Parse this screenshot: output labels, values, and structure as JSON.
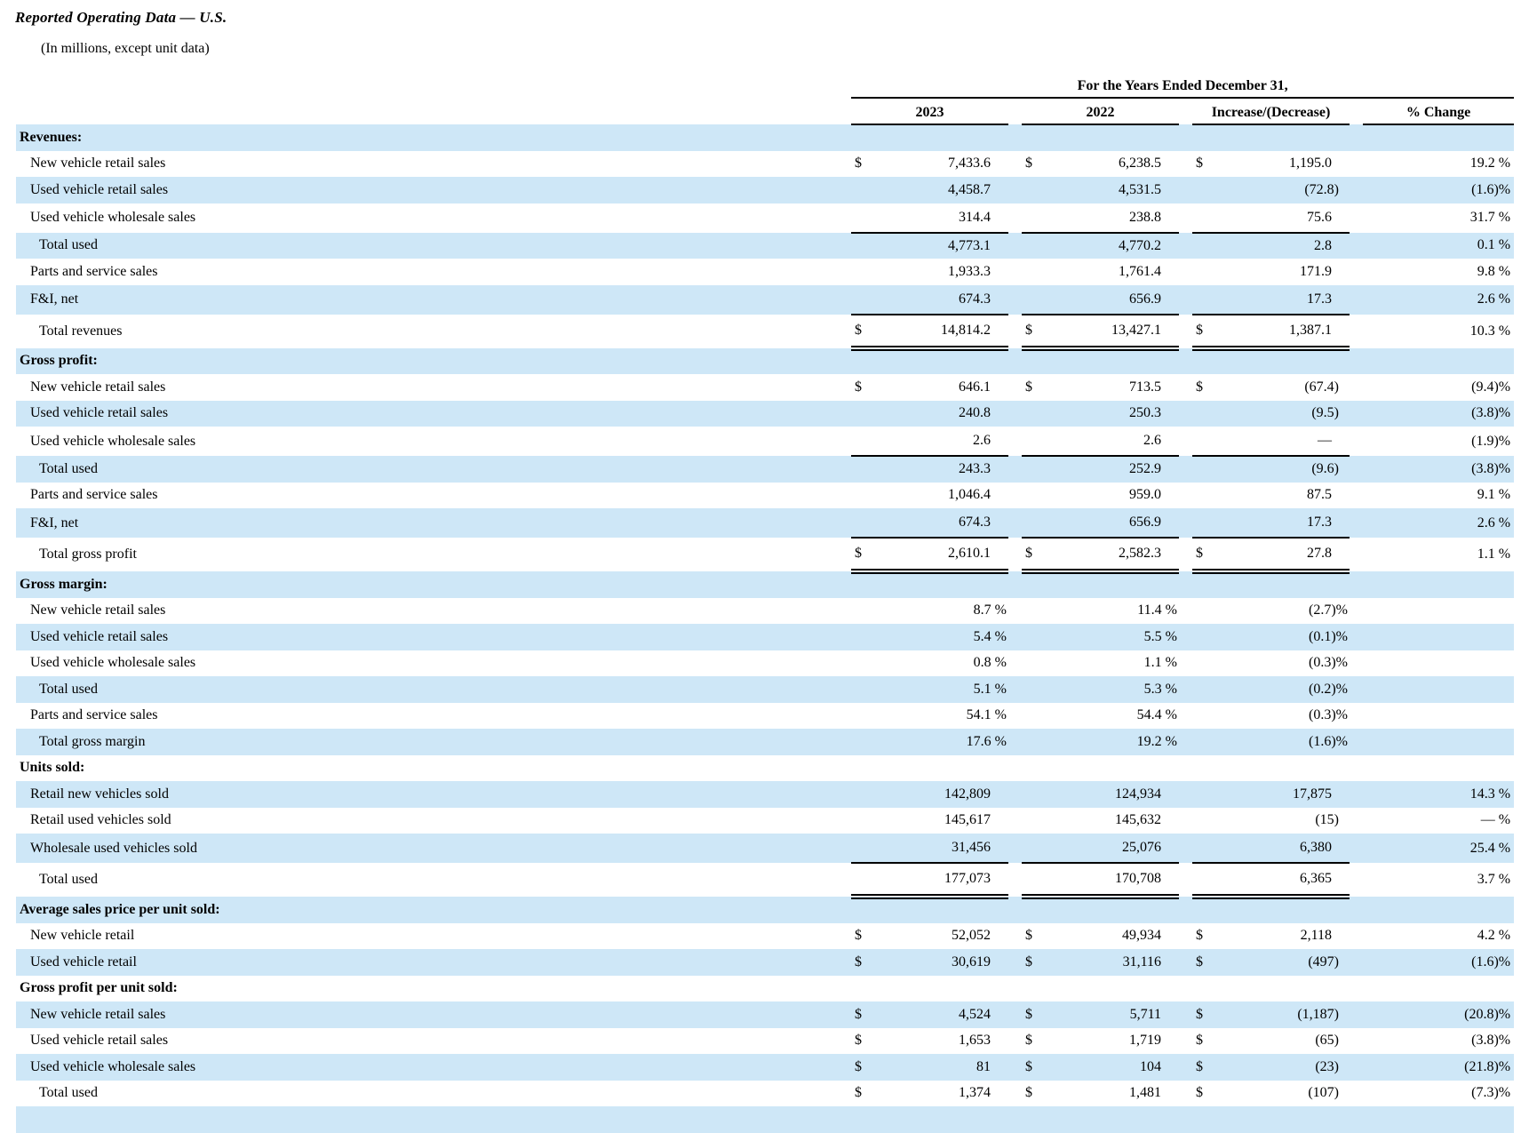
{
  "page": {
    "title": "Reported Operating Data — U.S.",
    "subtitle": "(In millions, except unit data)"
  },
  "table": {
    "span_header": "For the Years Ended December 31,",
    "columns": [
      "2023",
      "2022",
      "Increase/(Decrease)",
      "% Change"
    ],
    "currency_symbol": "$",
    "colors": {
      "stripe": "#cee7f7",
      "rule": "#000000",
      "text": "#000000"
    },
    "rows": [
      {
        "label": "Revenues:",
        "indent": 0,
        "bold": true,
        "shaded": true
      },
      {
        "label": "New vehicle retail sales",
        "indent": 1,
        "shaded": false,
        "cur": true,
        "vals": [
          "7,433.6",
          "6,238.5",
          "1,195.0"
        ],
        "pct": "19.2 %"
      },
      {
        "label": "Used vehicle retail sales",
        "indent": 1,
        "shaded": true,
        "vals": [
          "4,458.7",
          "4,531.5",
          "(72.8)"
        ],
        "pct": "(1.6)%"
      },
      {
        "label": "Used vehicle wholesale sales",
        "indent": 1,
        "shaded": false,
        "vals": [
          "314.4",
          "238.8",
          "75.6"
        ],
        "pct": "31.7 %",
        "rule": "single"
      },
      {
        "label": "Total used",
        "indent": 2,
        "shaded": true,
        "vals": [
          "4,773.1",
          "4,770.2",
          "2.8"
        ],
        "pct": "0.1 %"
      },
      {
        "label": "Parts and service sales",
        "indent": 1,
        "shaded": false,
        "vals": [
          "1,933.3",
          "1,761.4",
          "171.9"
        ],
        "pct": "9.8 %"
      },
      {
        "label": "F&I, net",
        "indent": 1,
        "shaded": true,
        "vals": [
          "674.3",
          "656.9",
          "17.3"
        ],
        "pct": "2.6 %",
        "rule": "single"
      },
      {
        "label": "Total revenues",
        "indent": 2,
        "shaded": false,
        "cur": true,
        "vals": [
          "14,814.2",
          "13,427.1",
          "1,387.1"
        ],
        "pct": "10.3 %",
        "rule": "double"
      },
      {
        "label": "Gross profit:",
        "indent": 0,
        "bold": true,
        "shaded": true
      },
      {
        "label": "New vehicle retail sales",
        "indent": 1,
        "shaded": false,
        "cur": true,
        "vals": [
          "646.1",
          "713.5",
          "(67.4)"
        ],
        "pct": "(9.4)%"
      },
      {
        "label": "Used vehicle retail sales",
        "indent": 1,
        "shaded": true,
        "vals": [
          "240.8",
          "250.3",
          "(9.5)"
        ],
        "pct": "(3.8)%"
      },
      {
        "label": "Used vehicle wholesale sales",
        "indent": 1,
        "shaded": false,
        "vals": [
          "2.6",
          "2.6",
          "—"
        ],
        "pct": "(1.9)%",
        "rule": "single"
      },
      {
        "label": "Total used",
        "indent": 2,
        "shaded": true,
        "vals": [
          "243.3",
          "252.9",
          "(9.6)"
        ],
        "pct": "(3.8)%"
      },
      {
        "label": "Parts and service sales",
        "indent": 1,
        "shaded": false,
        "vals": [
          "1,046.4",
          "959.0",
          "87.5"
        ],
        "pct": "9.1 %"
      },
      {
        "label": "F&I, net",
        "indent": 1,
        "shaded": true,
        "vals": [
          "674.3",
          "656.9",
          "17.3"
        ],
        "pct": "2.6 %",
        "rule": "single"
      },
      {
        "label": "Total gross profit",
        "indent": 2,
        "shaded": false,
        "cur": true,
        "vals": [
          "2,610.1",
          "2,582.3",
          "27.8"
        ],
        "pct": "1.1 %",
        "rule": "double"
      },
      {
        "label": "Gross margin:",
        "indent": 0,
        "bold": true,
        "shaded": true
      },
      {
        "label": "New vehicle retail sales",
        "indent": 1,
        "shaded": false,
        "vals": [
          "8.7 %",
          "11.4 %",
          "(2.7)%"
        ],
        "pct": ""
      },
      {
        "label": "Used vehicle retail sales",
        "indent": 1,
        "shaded": true,
        "vals": [
          "5.4 %",
          "5.5 %",
          "(0.1)%"
        ],
        "pct": ""
      },
      {
        "label": "Used vehicle wholesale sales",
        "indent": 1,
        "shaded": false,
        "vals": [
          "0.8 %",
          "1.1 %",
          "(0.3)%"
        ],
        "pct": ""
      },
      {
        "label": "Total used",
        "indent": 2,
        "shaded": true,
        "vals": [
          "5.1 %",
          "5.3 %",
          "(0.2)%"
        ],
        "pct": ""
      },
      {
        "label": "Parts and service sales",
        "indent": 1,
        "shaded": false,
        "vals": [
          "54.1 %",
          "54.4 %",
          "(0.3)%"
        ],
        "pct": ""
      },
      {
        "label": "Total gross margin",
        "indent": 2,
        "shaded": true,
        "vals": [
          "17.6 %",
          "19.2 %",
          "(1.6)%"
        ],
        "pct": ""
      },
      {
        "label": "Units sold:",
        "indent": 0,
        "bold": true,
        "shaded": false
      },
      {
        "label": "Retail new vehicles sold",
        "indent": 1,
        "shaded": true,
        "vals": [
          "142,809",
          "124,934",
          "17,875"
        ],
        "pct": "14.3 %"
      },
      {
        "label": "Retail used vehicles sold",
        "indent": 1,
        "shaded": false,
        "vals": [
          "145,617",
          "145,632",
          "(15)"
        ],
        "pct": "— %"
      },
      {
        "label": "Wholesale used vehicles sold",
        "indent": 1,
        "shaded": true,
        "vals": [
          "31,456",
          "25,076",
          "6,380"
        ],
        "pct": "25.4 %",
        "rule": "single"
      },
      {
        "label": "Total used",
        "indent": 2,
        "shaded": false,
        "vals": [
          "177,073",
          "170,708",
          "6,365"
        ],
        "pct": "3.7 %",
        "rule": "double"
      },
      {
        "label": "Average sales price per unit sold:",
        "indent": 0,
        "bold": true,
        "shaded": true
      },
      {
        "label": "New vehicle retail",
        "indent": 1,
        "shaded": false,
        "cur": true,
        "vals": [
          "52,052",
          "49,934",
          "2,118"
        ],
        "pct": "4.2 %"
      },
      {
        "label": "Used vehicle retail",
        "indent": 1,
        "shaded": true,
        "cur": true,
        "vals": [
          "30,619",
          "31,116",
          "(497)"
        ],
        "pct": "(1.6)%"
      },
      {
        "label": "Gross profit per unit sold:",
        "indent": 0,
        "bold": true,
        "shaded": false
      },
      {
        "label": "New vehicle retail sales",
        "indent": 1,
        "shaded": true,
        "cur": true,
        "vals": [
          "4,524",
          "5,711",
          "(1,187)"
        ],
        "pct": "(20.8)%"
      },
      {
        "label": "Used vehicle retail sales",
        "indent": 1,
        "shaded": false,
        "cur": true,
        "vals": [
          "1,653",
          "1,719",
          "(65)"
        ],
        "pct": "(3.8)%"
      },
      {
        "label": "Used vehicle wholesale sales",
        "indent": 1,
        "shaded": true,
        "cur": true,
        "vals": [
          "81",
          "104",
          "(23)"
        ],
        "pct": "(21.8)%"
      },
      {
        "label": "Total used",
        "indent": 2,
        "shaded": false,
        "cur": true,
        "vals": [
          "1,374",
          "1,481",
          "(107)"
        ],
        "pct": "(7.3)%"
      },
      {
        "label": "",
        "indent": 1,
        "shaded": true,
        "partial": true
      }
    ]
  }
}
